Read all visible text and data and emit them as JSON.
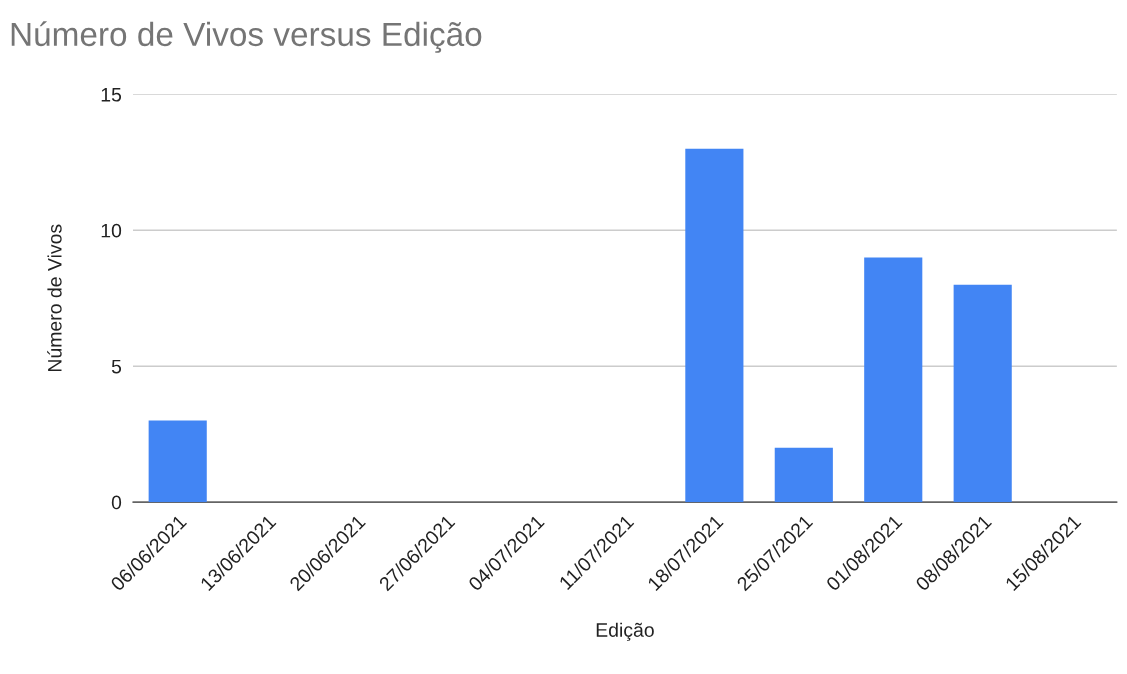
{
  "chart_data": {
    "type": "bar",
    "title": "Número de Vivos versus Edição",
    "xlabel": "Edição",
    "ylabel": "Número de Vivos",
    "categories": [
      "06/06/2021",
      "13/06/2021",
      "20/06/2021",
      "27/06/2021",
      "04/07/2021",
      "11/07/2021",
      "18/07/2021",
      "25/07/2021",
      "01/08/2021",
      "08/08/2021",
      "15/08/2021"
    ],
    "values": [
      3,
      0,
      0,
      0,
      0,
      0,
      13,
      2,
      9,
      8,
      0
    ],
    "color": "#4285f4",
    "ylim": [
      0,
      15
    ],
    "yticks": [
      0,
      5,
      10,
      15
    ],
    "grid": "y"
  }
}
